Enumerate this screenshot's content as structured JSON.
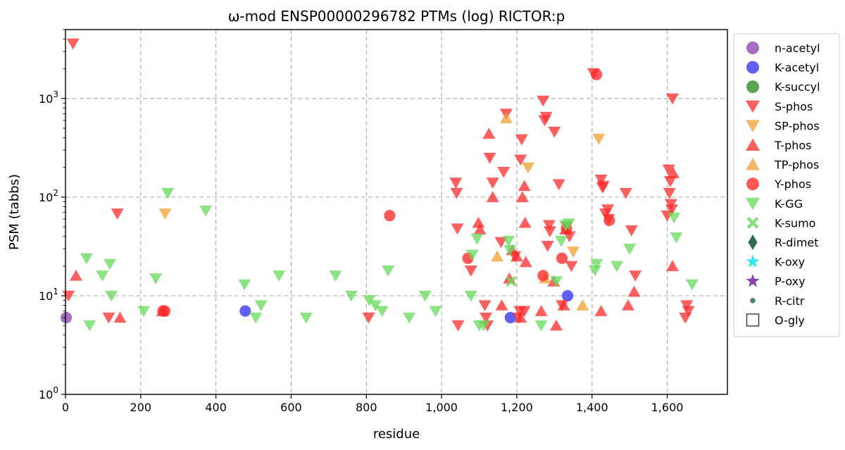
{
  "chart_data": {
    "type": "scatter",
    "title": "ω-mod ENSP00000296782 PTMs (log) RICTOR:p",
    "xlabel": "residue",
    "ylabel": "PSM (tabbs)",
    "xlim": [
      0,
      1760
    ],
    "ylim": [
      1,
      5000
    ],
    "yscale": "log",
    "grid": true,
    "legend_position": "right-outside",
    "x_ticks": [
      {
        "value": 0,
        "label": "0"
      },
      {
        "value": 200,
        "label": "200"
      },
      {
        "value": 400,
        "label": "400"
      },
      {
        "value": 600,
        "label": "600"
      },
      {
        "value": 800,
        "label": "800"
      },
      {
        "value": 1000,
        "label": "1,000"
      },
      {
        "value": 1200,
        "label": "1,200"
      },
      {
        "value": 1400,
        "label": "1,400"
      },
      {
        "value": 1600,
        "label": "1,600"
      }
    ],
    "y_ticks": [
      {
        "value": 1,
        "base": "10",
        "exp": "0"
      },
      {
        "value": 10,
        "base": "10",
        "exp": "1"
      },
      {
        "value": 100,
        "base": "10",
        "exp": "2"
      },
      {
        "value": 1000,
        "base": "10",
        "exp": "3"
      }
    ],
    "series": [
      {
        "name": "n-acetyl",
        "marker": "circle",
        "color": "#8e44ad",
        "points": [
          [
            2,
            6
          ]
        ]
      },
      {
        "name": "K-acetyl",
        "marker": "circle",
        "color": "#3333ee",
        "points": [
          [
            478,
            7
          ],
          [
            1183,
            6
          ],
          [
            1335,
            10
          ]
        ]
      },
      {
        "name": "K-succyl",
        "marker": "circle",
        "color": "#2e8b22",
        "points": []
      },
      {
        "name": "S-phos",
        "marker": "triangle-down",
        "color": "#ff2a2a",
        "points": [
          [
            8,
            10
          ],
          [
            20,
            3600
          ],
          [
            138,
            68
          ],
          [
            115,
            6
          ],
          [
            806,
            6
          ],
          [
            1038,
            140
          ],
          [
            1040,
            110
          ],
          [
            1042,
            48
          ],
          [
            1044,
            5
          ],
          [
            1078,
            18
          ],
          [
            1115,
            8
          ],
          [
            1118,
            6
          ],
          [
            1122,
            5
          ],
          [
            1128,
            250
          ],
          [
            1136,
            140
          ],
          [
            1158,
            35
          ],
          [
            1165,
            180
          ],
          [
            1172,
            700
          ],
          [
            1195,
            25
          ],
          [
            1205,
            6
          ],
          [
            1210,
            240
          ],
          [
            1213,
            385
          ],
          [
            1208,
            7
          ],
          [
            1220,
            7
          ],
          [
            1270,
            950
          ],
          [
            1274,
            600
          ],
          [
            1278,
            650
          ],
          [
            1286,
            52
          ],
          [
            1288,
            45
          ],
          [
            1282,
            32
          ],
          [
            1300,
            460
          ],
          [
            1312,
            135
          ],
          [
            1320,
            8
          ],
          [
            1332,
            50
          ],
          [
            1340,
            40
          ],
          [
            1345,
            20
          ],
          [
            1404,
            1800
          ],
          [
            1424,
            150
          ],
          [
            1428,
            125
          ],
          [
            1430,
            130
          ],
          [
            1436,
            68
          ],
          [
            1442,
            75
          ],
          [
            1444,
            60
          ],
          [
            1490,
            110
          ],
          [
            1505,
            46
          ],
          [
            1515,
            16
          ],
          [
            1604,
            190
          ],
          [
            1606,
            110
          ],
          [
            1608,
            145
          ],
          [
            1610,
            85
          ],
          [
            1600,
            65
          ],
          [
            1612,
            75
          ],
          [
            1614,
            1000
          ],
          [
            1648,
            6
          ],
          [
            1652,
            8
          ],
          [
            1656,
            7
          ]
        ]
      },
      {
        "name": "SP-phos",
        "marker": "triangle-down",
        "color": "#f0a030",
        "points": [
          [
            265,
            68
          ],
          [
            1230,
            200
          ],
          [
            1350,
            28
          ],
          [
            1418,
            390
          ]
        ]
      },
      {
        "name": "T-phos",
        "marker": "triangle-up",
        "color": "#ff2a2a",
        "points": [
          [
            28,
            16
          ],
          [
            145,
            6
          ],
          [
            258,
            7
          ],
          [
            1098,
            55
          ],
          [
            1102,
            47
          ],
          [
            1126,
            440
          ],
          [
            1136,
            100
          ],
          [
            1160,
            8
          ],
          [
            1180,
            15
          ],
          [
            1188,
            29
          ],
          [
            1200,
            25
          ],
          [
            1210,
            6
          ],
          [
            1215,
            100
          ],
          [
            1220,
            130
          ],
          [
            1222,
            55
          ],
          [
            1224,
            22
          ],
          [
            1265,
            7
          ],
          [
            1298,
            14
          ],
          [
            1305,
            5
          ],
          [
            1325,
            8
          ],
          [
            1330,
            47
          ],
          [
            1424,
            7
          ],
          [
            1496,
            8
          ],
          [
            1512,
            11
          ],
          [
            1614,
            20
          ],
          [
            1616,
            175
          ]
        ]
      },
      {
        "name": "TP-phos",
        "marker": "triangle-up",
        "color": "#f0a030",
        "points": [
          [
            1148,
            25
          ],
          [
            1172,
            630
          ],
          [
            1275,
            15
          ],
          [
            1375,
            8
          ]
        ]
      },
      {
        "name": "Y-phos",
        "marker": "circle",
        "color": "#ff2a2a",
        "points": [
          [
            259,
            7
          ],
          [
            264,
            7
          ],
          [
            862,
            65
          ],
          [
            1070,
            24
          ],
          [
            1270,
            16
          ],
          [
            1320,
            24
          ],
          [
            1332,
            48
          ],
          [
            1412,
            1750
          ],
          [
            1446,
            58
          ]
        ]
      },
      {
        "name": "K-GG",
        "marker": "triangle-down",
        "color": "#66d95a",
        "points": [
          [
            56,
            24
          ],
          [
            64,
            5
          ],
          [
            98,
            16
          ],
          [
            118,
            21
          ],
          [
            122,
            10
          ],
          [
            208,
            7
          ],
          [
            240,
            15
          ],
          [
            272,
            110
          ],
          [
            373,
            73
          ],
          [
            476,
            13
          ],
          [
            506,
            6
          ],
          [
            520,
            8
          ],
          [
            568,
            16
          ],
          [
            640,
            6
          ],
          [
            718,
            16
          ],
          [
            760,
            10
          ],
          [
            808,
            9
          ],
          [
            824,
            8
          ],
          [
            842,
            7
          ],
          [
            858,
            18
          ],
          [
            914,
            6
          ],
          [
            956,
            10
          ],
          [
            984,
            7
          ],
          [
            1078,
            10
          ],
          [
            1082,
            26
          ],
          [
            1094,
            38
          ],
          [
            1100,
            5
          ],
          [
            1112,
            5
          ],
          [
            1178,
            36
          ],
          [
            1182,
            29
          ],
          [
            1265,
            5
          ],
          [
            1305,
            14
          ],
          [
            1318,
            36
          ],
          [
            1330,
            52
          ],
          [
            1338,
            54
          ],
          [
            1408,
            18
          ],
          [
            1412,
            21
          ],
          [
            1466,
            20
          ],
          [
            1500,
            30
          ],
          [
            1618,
            62
          ],
          [
            1624,
            39
          ],
          [
            1666,
            13
          ]
        ]
      },
      {
        "name": "K-sumo",
        "marker": "x",
        "color": "#66d95a",
        "points": [
          [
            1185,
            14
          ]
        ]
      },
      {
        "name": "R-dimet",
        "marker": "diamond",
        "color": "#2f6b4f",
        "points": []
      },
      {
        "name": "K-oxy",
        "marker": "star",
        "color": "#33e8e8",
        "points": []
      },
      {
        "name": "P-oxy",
        "marker": "star",
        "color": "#8e44ad",
        "points": []
      },
      {
        "name": "R-citr",
        "marker": "small-circle",
        "color": "#2f6b4f",
        "points": []
      },
      {
        "name": "O-gly",
        "marker": "square-open",
        "color": "#444444",
        "points": []
      }
    ]
  }
}
